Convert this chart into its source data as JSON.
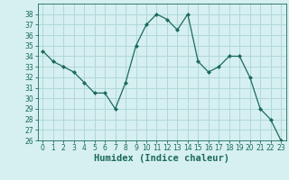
{
  "x": [
    0,
    1,
    2,
    3,
    4,
    5,
    6,
    7,
    8,
    9,
    10,
    11,
    12,
    13,
    14,
    15,
    16,
    17,
    18,
    19,
    20,
    21,
    22,
    23
  ],
  "y": [
    34.5,
    33.5,
    33.0,
    32.5,
    31.5,
    30.5,
    30.5,
    29.0,
    31.5,
    35.0,
    37.0,
    38.0,
    37.5,
    36.5,
    38.0,
    33.5,
    32.5,
    33.0,
    34.0,
    34.0,
    32.0,
    29.0,
    28.0,
    26.0
  ],
  "line_color": "#1a6b5a",
  "marker": "D",
  "marker_size": 2.0,
  "bg_color": "#d6eff0",
  "grid_color": "#b0d8d8",
  "xlabel": "Humidex (Indice chaleur)",
  "ylabel": "",
  "ylim": [
    26,
    39
  ],
  "xlim": [
    -0.5,
    23.5
  ],
  "yticks": [
    26,
    27,
    28,
    29,
    30,
    31,
    32,
    33,
    34,
    35,
    36,
    37,
    38
  ],
  "xticks": [
    0,
    1,
    2,
    3,
    4,
    5,
    6,
    7,
    8,
    9,
    10,
    11,
    12,
    13,
    14,
    15,
    16,
    17,
    18,
    19,
    20,
    21,
    22,
    23
  ],
  "tick_label_fontsize": 5.5,
  "xlabel_fontsize": 7.5,
  "linewidth": 0.9
}
